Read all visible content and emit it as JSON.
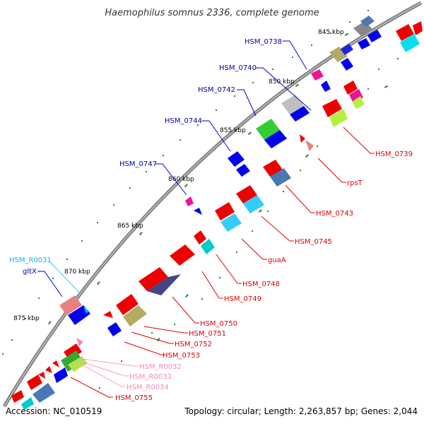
{
  "title": "Haemophilus somnus 2336, complete genome",
  "accession": "Accession: NC_010519",
  "summary": "Topology: circular; Length: 2,263,857 bp; Genes: 2,044",
  "ticks": [
    "845 kbp",
    "850 kbp",
    "855 kbp",
    "860 kbp",
    "865 kbp",
    "870 kbp",
    "875 kbp"
  ],
  "labels_left": [
    "HSM_0738",
    "HSM_0740",
    "HSM_0742",
    "HSM_0744",
    "HSM_0747",
    "HSM_R0031",
    "gltX"
  ],
  "labels_right": [
    "HSM_0739",
    "rpsT",
    "HSM_0743",
    "HSM_0745",
    "guaA",
    "HSM_0748",
    "HSM_0749",
    "HSM_0750",
    "HSM_0751",
    "HSM_0752",
    "HSM_0753",
    "HSM_R0032",
    "HSM_R0033",
    "HSM_R0034",
    "HSM_0755"
  ],
  "colors": {
    "backbone": "#8c8c8c",
    "forward_gene": "#0000ee",
    "reverse_gene": "#ee0000",
    "forward_label": "#0000aa",
    "reverse_label": "#dd0000",
    "rna_forward_label": "#00c0e0",
    "rna_reverse_label": "#f08cb4",
    "tick_mark": "#228822"
  }
}
